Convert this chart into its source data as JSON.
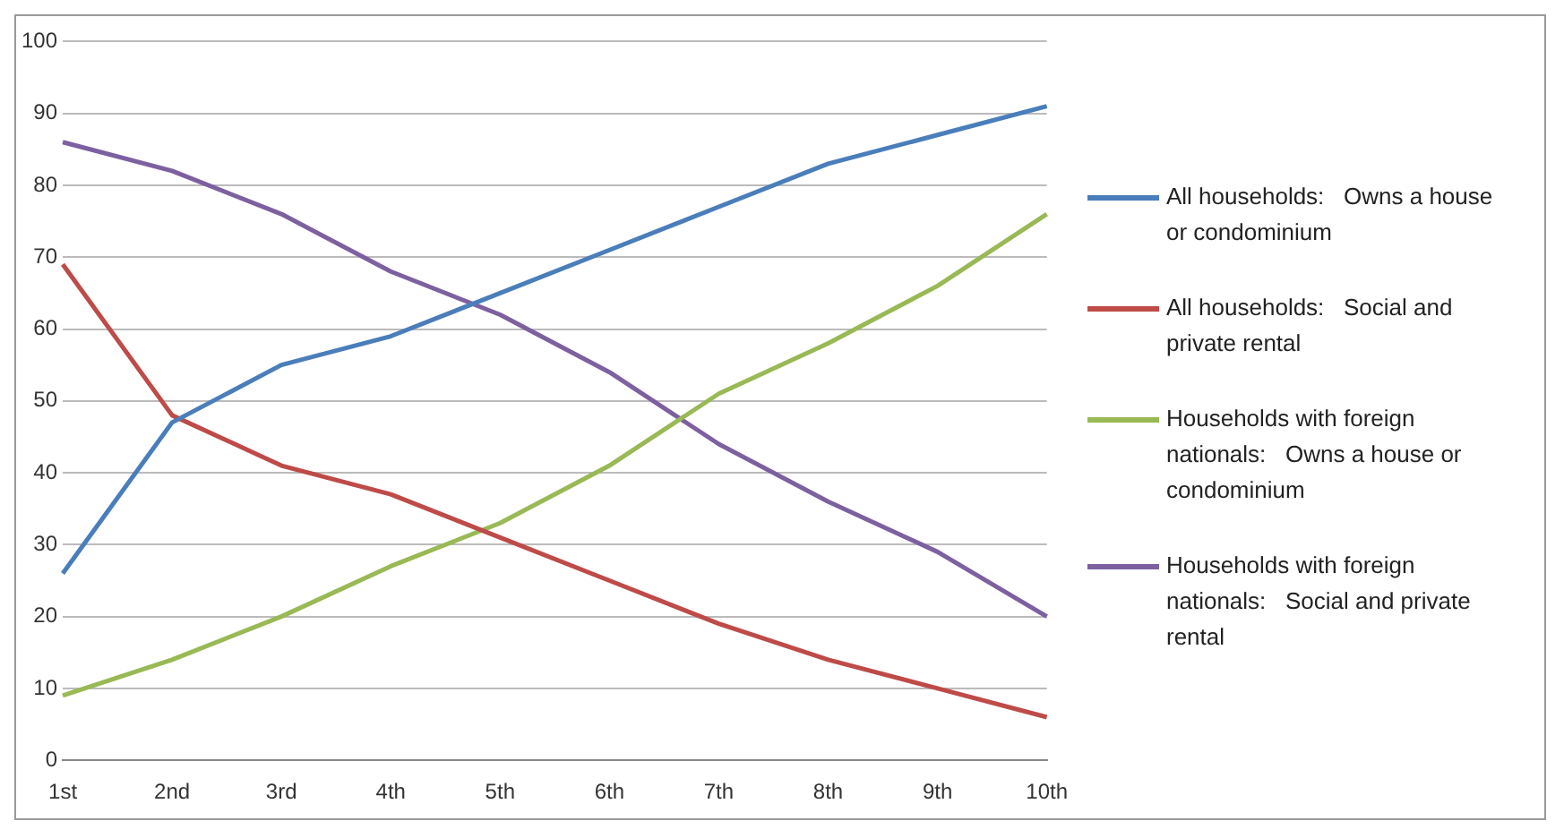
{
  "chart_data": {
    "type": "line",
    "categories": [
      "1st",
      "2nd",
      "3rd",
      "4th",
      "5th",
      "6th",
      "7th",
      "8th",
      "9th",
      "10th"
    ],
    "series": [
      {
        "name": "All households:   Owns a house or condominium",
        "color": "#4a7ebb",
        "values": [
          26,
          47,
          55,
          59,
          65,
          71,
          77,
          83,
          87,
          91
        ]
      },
      {
        "name": "All households:   Social and private rental",
        "color": "#be4b48",
        "values": [
          69,
          48,
          41,
          37,
          31,
          25,
          19,
          14,
          10,
          6
        ]
      },
      {
        "name": "Households with foreign nationals:   Owns a house or condominium",
        "color": "#98b954",
        "values": [
          9,
          14,
          20,
          27,
          33,
          41,
          51,
          58,
          66,
          76
        ]
      },
      {
        "name": "Households with foreign nationals:   Social and private rental",
        "color": "#7d60a0",
        "values": [
          86,
          82,
          76,
          68,
          62,
          54,
          44,
          36,
          29,
          20
        ]
      }
    ],
    "ylim": [
      0,
      100
    ],
    "yticks": [
      0,
      10,
      20,
      30,
      40,
      50,
      60,
      70,
      80,
      90,
      100
    ],
    "grid": "y",
    "legend": "right",
    "marker": "none"
  }
}
